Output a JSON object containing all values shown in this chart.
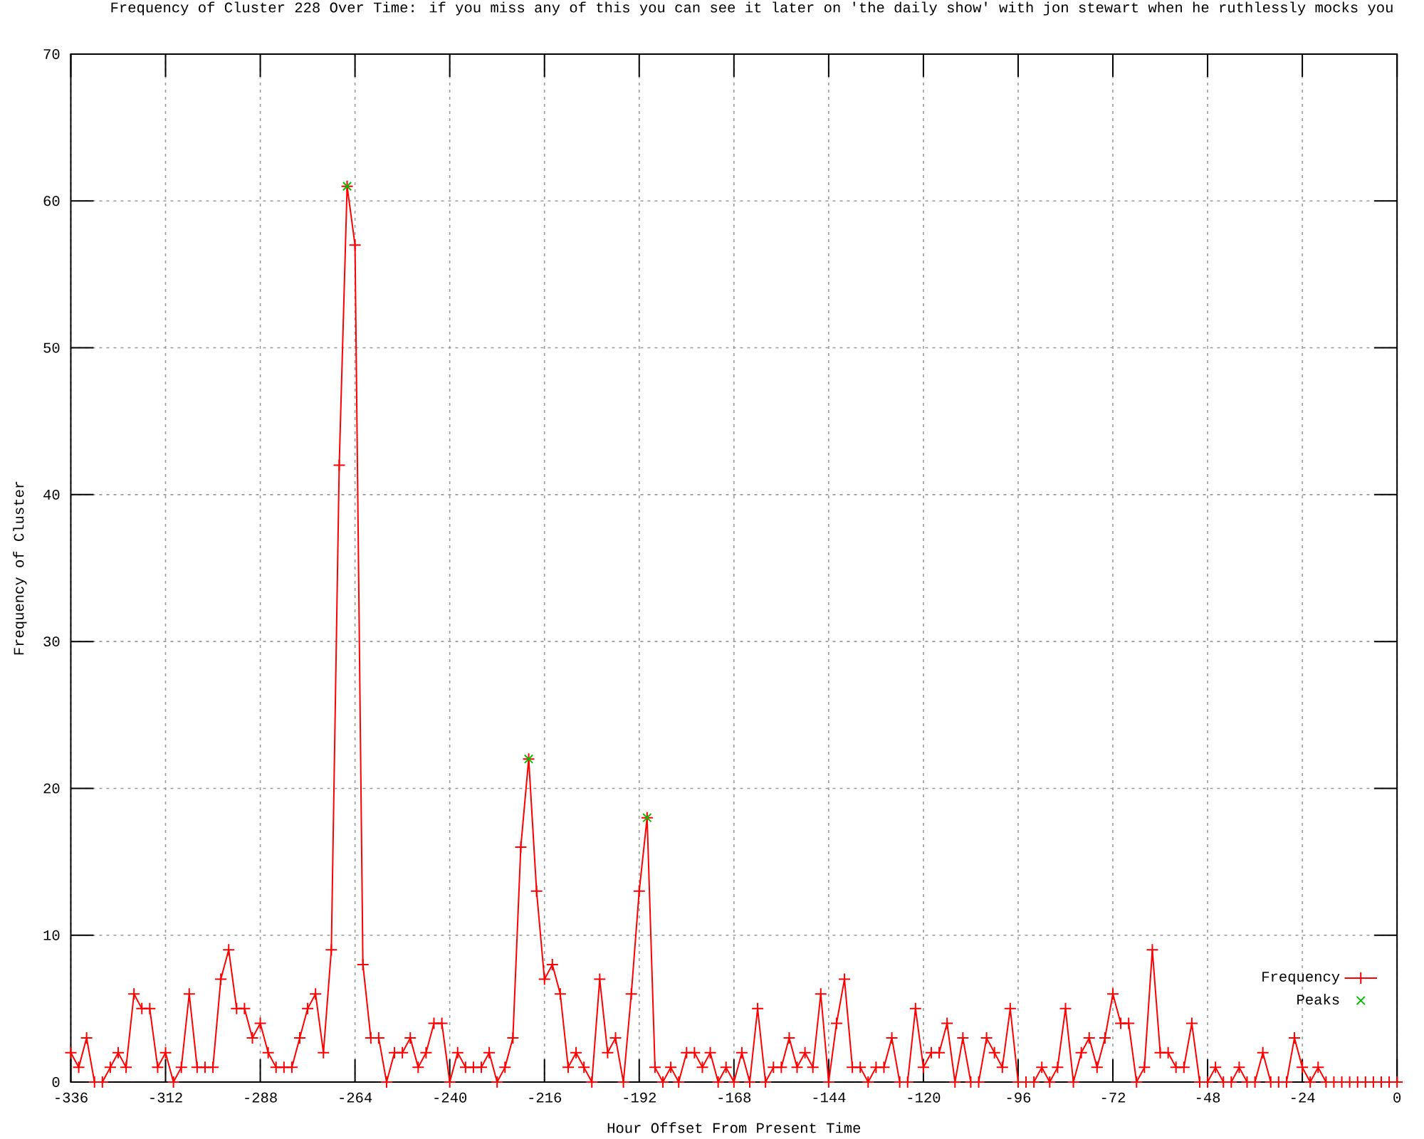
{
  "chart_data": {
    "type": "line",
    "title": "Frequency of Cluster 228 Over Time: if you miss any of this you can see it later on 'the daily show' with jon stewart when he ruthlessly mocks you",
    "xlabel": "Hour Offset From Present Time",
    "ylabel": "Frequency of Cluster",
    "x": [
      -336,
      -334,
      -332,
      -330,
      -328,
      -326,
      -324,
      -322,
      -320,
      -318,
      -316,
      -314,
      -312,
      -310,
      -308,
      -306,
      -304,
      -302,
      -300,
      -298,
      -296,
      -294,
      -292,
      -290,
      -288,
      -286,
      -284,
      -282,
      -280,
      -278,
      -276,
      -274,
      -272,
      -270,
      -268,
      -266,
      -264,
      -262,
      -260,
      -258,
      -256,
      -254,
      -252,
      -250,
      -248,
      -246,
      -244,
      -242,
      -240,
      -238,
      -236,
      -234,
      -232,
      -230,
      -228,
      -226,
      -224,
      -222,
      -220,
      -218,
      -216,
      -214,
      -212,
      -210,
      -208,
      -206,
      -204,
      -202,
      -200,
      -198,
      -196,
      -194,
      -192,
      -190,
      -188,
      -186,
      -184,
      -182,
      -180,
      -178,
      -176,
      -174,
      -172,
      -170,
      -168,
      -166,
      -164,
      -162,
      -160,
      -158,
      -156,
      -154,
      -152,
      -150,
      -148,
      -146,
      -144,
      -142,
      -140,
      -138,
      -136,
      -134,
      -132,
      -130,
      -128,
      -126,
      -124,
      -122,
      -120,
      -118,
      -116,
      -114,
      -112,
      -110,
      -108,
      -106,
      -104,
      -102,
      -100,
      -98,
      -96,
      -94,
      -92,
      -90,
      -88,
      -86,
      -84,
      -82,
      -80,
      -78,
      -76,
      -74,
      -72,
      -70,
      -68,
      -66,
      -64,
      -62,
      -60,
      -58,
      -56,
      -54,
      -52,
      -50,
      -48,
      -46,
      -44,
      -42,
      -40,
      -38,
      -36,
      -34,
      -32,
      -30,
      -28,
      -26,
      -24,
      -22,
      -20,
      -18,
      -16,
      -14,
      -12,
      -10,
      -8,
      -6,
      -4,
      -2,
      0
    ],
    "series": [
      {
        "name": "Frequency",
        "color": "#ff0000",
        "marker": "cross",
        "values": [
          2,
          1,
          3,
          0,
          0,
          1,
          2,
          1,
          6,
          5,
          5,
          1,
          2,
          0,
          1,
          6,
          1,
          1,
          1,
          7,
          9,
          5,
          5,
          3,
          4,
          2,
          1,
          1,
          1,
          3,
          5,
          6,
          2,
          9,
          42,
          61,
          57,
          8,
          3,
          3,
          0,
          2,
          2,
          3,
          1,
          2,
          4,
          4,
          0,
          2,
          1,
          1,
          1,
          2,
          0,
          1,
          3,
          16,
          22,
          13,
          7,
          8,
          6,
          1,
          2,
          1,
          0,
          7,
          2,
          3,
          0,
          6,
          13,
          18,
          1,
          0,
          1,
          0,
          2,
          2,
          1,
          2,
          0,
          1,
          0,
          2,
          0,
          5,
          0,
          1,
          1,
          3,
          1,
          2,
          1,
          6,
          0,
          4,
          7,
          1,
          1,
          0,
          1,
          1,
          3,
          0,
          0,
          5,
          1,
          2,
          2,
          4,
          0,
          3,
          0,
          0,
          3,
          2,
          1,
          5,
          0,
          0,
          0,
          1,
          0,
          1,
          5,
          0,
          2,
          3,
          1,
          3,
          6,
          4,
          4,
          0,
          1,
          9,
          2,
          2,
          1,
          1,
          4,
          0,
          0,
          1,
          0,
          0,
          1,
          0,
          0,
          2,
          0,
          0,
          0,
          3,
          1,
          0,
          1,
          0,
          0,
          0,
          0,
          0,
          0,
          0,
          0,
          0,
          0
        ]
      },
      {
        "name": "Peaks",
        "type": "scatter",
        "color": "#00c000",
        "marker": "cross",
        "x": [
          -266,
          -220,
          -190
        ],
        "values": [
          61,
          22,
          18
        ]
      }
    ],
    "xlim": [
      -336,
      0
    ],
    "ylim": [
      0,
      70
    ],
    "xticks": [
      -336,
      -312,
      -288,
      -264,
      -240,
      -216,
      -192,
      -168,
      -144,
      -120,
      -96,
      -72,
      -48,
      -24,
      0
    ],
    "yticks": [
      0,
      10,
      20,
      30,
      40,
      50,
      60,
      70
    ],
    "grid": true,
    "legend": "bottom right"
  }
}
